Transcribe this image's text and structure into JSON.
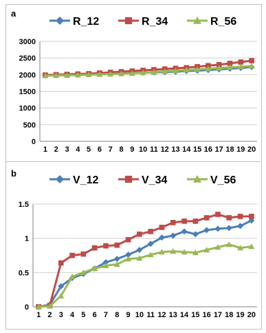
{
  "chart_data": [
    {
      "type": "line",
      "panel_label": "a",
      "categories": [
        "1",
        "2",
        "3",
        "4",
        "5",
        "6",
        "7",
        "8",
        "9",
        "10",
        "11",
        "12",
        "13",
        "14",
        "15",
        "16",
        "17",
        "18",
        "19",
        "20"
      ],
      "ylim": [
        0,
        3000
      ],
      "yticks": [
        "0",
        "500",
        "1000",
        "1500",
        "2000",
        "2500",
        "3000"
      ],
      "ytick_values": [
        0,
        500,
        1000,
        1500,
        2000,
        2500,
        3000
      ],
      "grid": true,
      "legend": "top",
      "series": [
        {
          "name": "R_12",
          "color": "#4a7ebb",
          "marker": "diamond",
          "values": [
            1980,
            1985,
            1990,
            2000,
            2010,
            2020,
            2030,
            2040,
            2050,
            2060,
            2070,
            2080,
            2090,
            2110,
            2120,
            2140,
            2160,
            2180,
            2200,
            2230
          ]
        },
        {
          "name": "R_34",
          "color": "#be4b48",
          "marker": "square",
          "values": [
            1990,
            2000,
            2010,
            2020,
            2030,
            2050,
            2070,
            2090,
            2110,
            2130,
            2150,
            2170,
            2190,
            2210,
            2240,
            2270,
            2300,
            2340,
            2380,
            2420
          ]
        },
        {
          "name": "R_56",
          "color": "#98b954",
          "marker": "triangle",
          "values": [
            1970,
            1975,
            1980,
            1990,
            2000,
            2010,
            2020,
            2030,
            2040,
            2060,
            2080,
            2100,
            2120,
            2140,
            2160,
            2180,
            2200,
            2220,
            2240,
            2260
          ]
        }
      ]
    },
    {
      "type": "line",
      "panel_label": "b",
      "categories": [
        "1",
        "2",
        "3",
        "4",
        "5",
        "6",
        "7",
        "8",
        "9",
        "10",
        "11",
        "12",
        "13",
        "14",
        "15",
        "16",
        "17",
        "18",
        "19",
        "20"
      ],
      "ylim": [
        0,
        1.5
      ],
      "yticks": [
        "0",
        "0.5",
        "1",
        "1.5"
      ],
      "ytick_values": [
        0,
        0.5,
        1,
        1.5
      ],
      "grid": true,
      "legend": "top",
      "series": [
        {
          "name": "V_12",
          "color": "#4a7ebb",
          "marker": "diamond",
          "values": [
            0,
            0.03,
            0.3,
            0.42,
            0.48,
            0.56,
            0.65,
            0.7,
            0.76,
            0.83,
            0.92,
            1.01,
            1.04,
            1.1,
            1.06,
            1.12,
            1.14,
            1.15,
            1.18,
            1.26
          ]
        },
        {
          "name": "V_34",
          "color": "#be4b48",
          "marker": "square",
          "values": [
            0,
            0.02,
            0.64,
            0.75,
            0.77,
            0.86,
            0.89,
            0.9,
            0.98,
            1.06,
            1.1,
            1.16,
            1.23,
            1.25,
            1.25,
            1.3,
            1.35,
            1.3,
            1.32,
            1.32
          ]
        },
        {
          "name": "V_56",
          "color": "#98b954",
          "marker": "triangle",
          "values": [
            0,
            0.01,
            0.16,
            0.44,
            0.5,
            0.56,
            0.6,
            0.62,
            0.7,
            0.71,
            0.76,
            0.8,
            0.81,
            0.8,
            0.79,
            0.83,
            0.87,
            0.91,
            0.86,
            0.88
          ]
        }
      ]
    }
  ]
}
